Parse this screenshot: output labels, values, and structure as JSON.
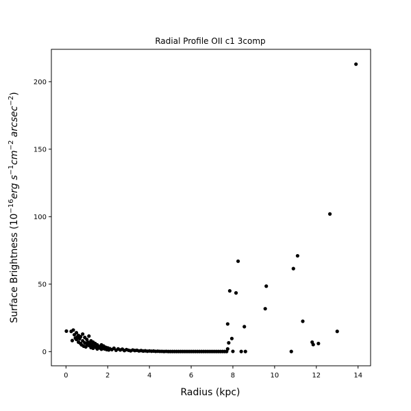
{
  "chart_data": {
    "type": "scatter",
    "title": "Radial Profile OII c1 3comp",
    "xlabel": "Radius (kpc)",
    "ylabel": {
      "prefix": "Surface Brightness (10",
      "exp16": "−16",
      "units1": "erg s",
      "exp1": "−1",
      "units2": "cm",
      "exp2": "−2",
      "units3": " arcsec",
      "exp3": "−2",
      "suffix": ")"
    },
    "xlim": [
      -0.7,
      14.6
    ],
    "ylim": [
      -10.5,
      224
    ],
    "xticks": [
      0,
      2,
      4,
      6,
      8,
      10,
      12,
      14
    ],
    "yticks": [
      0,
      50,
      100,
      150,
      200
    ],
    "grid": false,
    "marker_color": "#000000",
    "series": [
      {
        "points": [
          [
            0.02,
            15.2
          ],
          [
            0.25,
            15.0
          ],
          [
            0.3,
            8.2
          ],
          [
            0.35,
            16.0
          ],
          [
            0.4,
            12.5
          ],
          [
            0.45,
            10.0
          ],
          [
            0.5,
            9.0
          ],
          [
            0.5,
            14.0
          ],
          [
            0.55,
            11.0
          ],
          [
            0.6,
            7.0
          ],
          [
            0.6,
            12.0
          ],
          [
            0.65,
            9.5
          ],
          [
            0.7,
            6.0
          ],
          [
            0.7,
            11.0
          ],
          [
            0.75,
            5.0
          ],
          [
            0.8,
            8.0
          ],
          [
            0.8,
            13.0
          ],
          [
            0.85,
            4.0
          ],
          [
            0.9,
            6.5
          ],
          [
            0.9,
            10.5
          ],
          [
            0.95,
            3.5
          ],
          [
            1.0,
            5.5
          ],
          [
            1.0,
            9.0
          ],
          [
            1.05,
            7.0
          ],
          [
            1.1,
            4.5
          ],
          [
            1.1,
            11.5
          ],
          [
            1.15,
            6.0
          ],
          [
            1.2,
            3.0
          ],
          [
            1.2,
            8.0
          ],
          [
            1.25,
            5.0
          ],
          [
            1.3,
            2.5
          ],
          [
            1.3,
            7.0
          ],
          [
            1.35,
            4.0
          ],
          [
            1.4,
            6.0
          ],
          [
            1.45,
            3.0
          ],
          [
            1.5,
            5.0
          ],
          [
            1.5,
            2.0
          ],
          [
            1.55,
            4.0
          ],
          [
            1.6,
            3.5
          ],
          [
            1.65,
            2.5
          ],
          [
            1.7,
            5.0
          ],
          [
            1.7,
            1.8
          ],
          [
            1.75,
            3.0
          ],
          [
            1.8,
            4.2
          ],
          [
            1.85,
            2.0
          ],
          [
            1.9,
            3.2
          ],
          [
            1.95,
            1.5
          ],
          [
            2.0,
            2.8
          ],
          [
            2.05,
            1.2
          ],
          [
            2.1,
            2.2
          ],
          [
            2.2,
            1.5
          ],
          [
            2.3,
            2.5
          ],
          [
            2.4,
            1.0
          ],
          [
            2.5,
            2.0
          ],
          [
            2.6,
            1.2
          ],
          [
            2.7,
            1.8
          ],
          [
            2.8,
            0.8
          ],
          [
            2.9,
            1.5
          ],
          [
            3.0,
            1.0
          ],
          [
            3.1,
            0.6
          ],
          [
            3.2,
            1.2
          ],
          [
            3.3,
            0.8
          ],
          [
            3.4,
            1.0
          ],
          [
            3.5,
            0.5
          ],
          [
            3.6,
            0.8
          ],
          [
            3.7,
            0.4
          ],
          [
            3.8,
            0.6
          ],
          [
            3.9,
            0.3
          ],
          [
            4.0,
            0.5
          ],
          [
            4.1,
            0.3
          ],
          [
            4.2,
            0.4
          ],
          [
            4.3,
            0.2
          ],
          [
            4.4,
            0.3
          ],
          [
            4.5,
            0.2
          ],
          [
            4.6,
            0.2
          ],
          [
            4.7,
            0.1
          ],
          [
            4.8,
            0.2
          ],
          [
            4.9,
            0.1
          ],
          [
            5.0,
            0.1
          ],
          [
            5.1,
            0.1
          ],
          [
            5.2,
            0.1
          ],
          [
            5.3,
            0.1
          ],
          [
            5.4,
            0.1
          ],
          [
            5.5,
            0.1
          ],
          [
            5.6,
            0.1
          ],
          [
            5.7,
            0.1
          ],
          [
            5.8,
            0.1
          ],
          [
            5.9,
            0.1
          ],
          [
            6.0,
            0.1
          ],
          [
            6.1,
            0.1
          ],
          [
            6.2,
            0.1
          ],
          [
            6.3,
            0.1
          ],
          [
            6.4,
            0.1
          ],
          [
            6.5,
            0.1
          ],
          [
            6.6,
            0.1
          ],
          [
            6.7,
            0.1
          ],
          [
            6.8,
            0.1
          ],
          [
            6.9,
            0.1
          ],
          [
            7.0,
            0.1
          ],
          [
            7.1,
            0.1
          ],
          [
            7.2,
            0.1
          ],
          [
            7.3,
            0.1
          ],
          [
            7.4,
            0.1
          ],
          [
            7.5,
            0.1
          ],
          [
            7.6,
            0.1
          ],
          [
            7.7,
            0.1
          ],
          [
            7.75,
            2.0
          ],
          [
            7.75,
            20.5
          ],
          [
            7.8,
            6.5
          ],
          [
            7.85,
            45.0
          ],
          [
            7.95,
            9.7
          ],
          [
            8.0,
            0.2
          ],
          [
            8.15,
            43.5
          ],
          [
            8.25,
            67.0
          ],
          [
            8.4,
            0.1
          ],
          [
            8.55,
            18.5
          ],
          [
            8.6,
            0.1
          ],
          [
            9.55,
            31.8
          ],
          [
            9.6,
            48.5
          ],
          [
            10.8,
            0.1
          ],
          [
            10.9,
            61.5
          ],
          [
            11.1,
            71.0
          ],
          [
            11.35,
            22.5
          ],
          [
            11.8,
            7.0
          ],
          [
            11.85,
            5.2
          ],
          [
            12.1,
            6.0
          ],
          [
            12.65,
            102.0
          ],
          [
            13.0,
            15.0
          ],
          [
            13.9,
            213.0
          ]
        ]
      }
    ]
  }
}
